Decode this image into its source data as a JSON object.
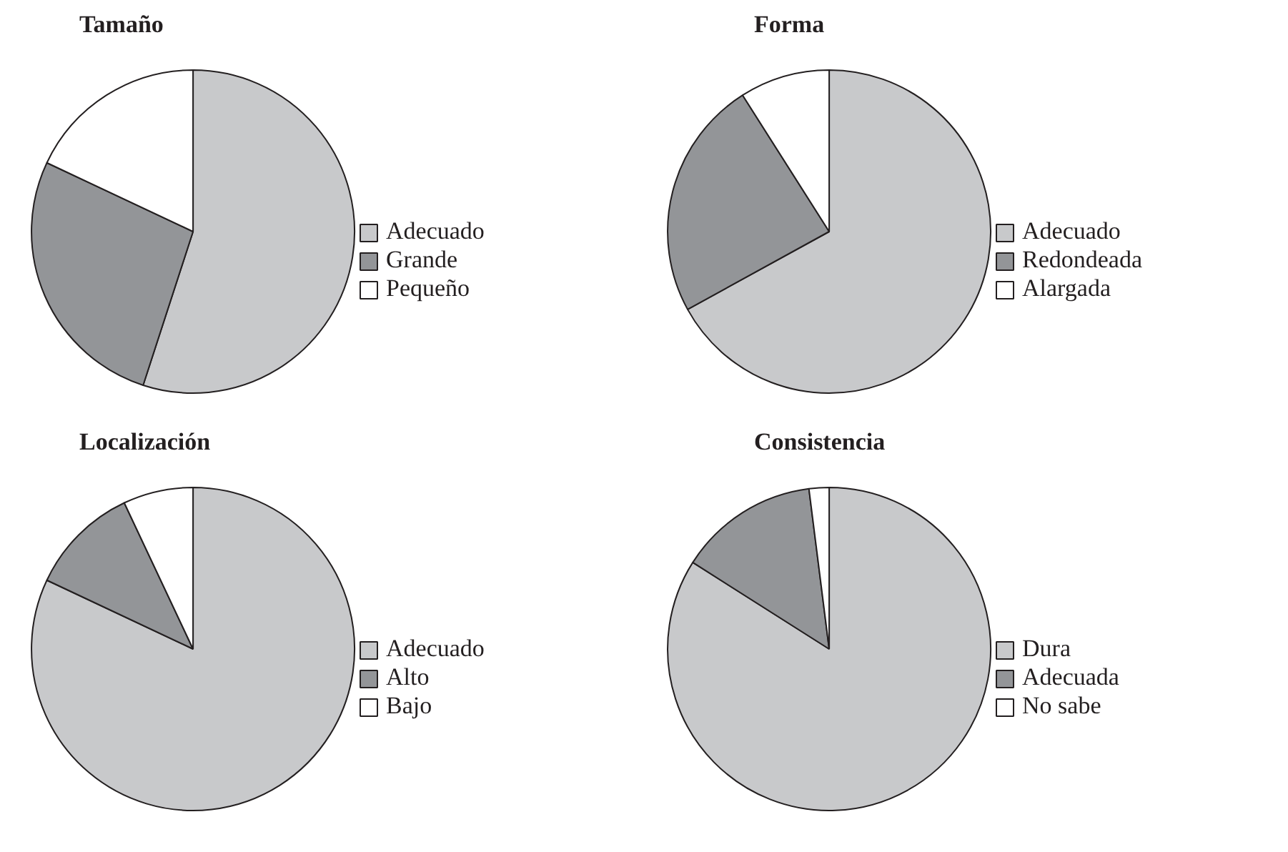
{
  "chart_data": [
    {
      "type": "pie",
      "title": "Tamaño",
      "categories": [
        "Adecuado",
        "Grande",
        "Pequeño"
      ],
      "values": [
        55,
        27,
        18
      ],
      "colors": [
        "#c8c9cb",
        "#939598",
        "#ffffff"
      ],
      "legend": "right"
    },
    {
      "type": "pie",
      "title": "Forma",
      "categories": [
        "Adecuado",
        "Redondeada",
        "Alargada"
      ],
      "values": [
        67,
        24,
        9
      ],
      "colors": [
        "#c8c9cb",
        "#939598",
        "#ffffff"
      ],
      "legend": "right"
    },
    {
      "type": "pie",
      "title": "Localización",
      "categories": [
        "Adecuado",
        "Alto",
        "Bajo"
      ],
      "values": [
        82,
        11,
        7
      ],
      "colors": [
        "#c8c9cb",
        "#939598",
        "#ffffff"
      ],
      "legend": "right"
    },
    {
      "type": "pie",
      "title": "Consistencia",
      "categories": [
        "Dura",
        "Adecuada",
        "No sabe"
      ],
      "values": [
        84,
        14,
        2
      ],
      "colors": [
        "#c8c9cb",
        "#939598",
        "#ffffff"
      ],
      "legend": "right"
    }
  ]
}
